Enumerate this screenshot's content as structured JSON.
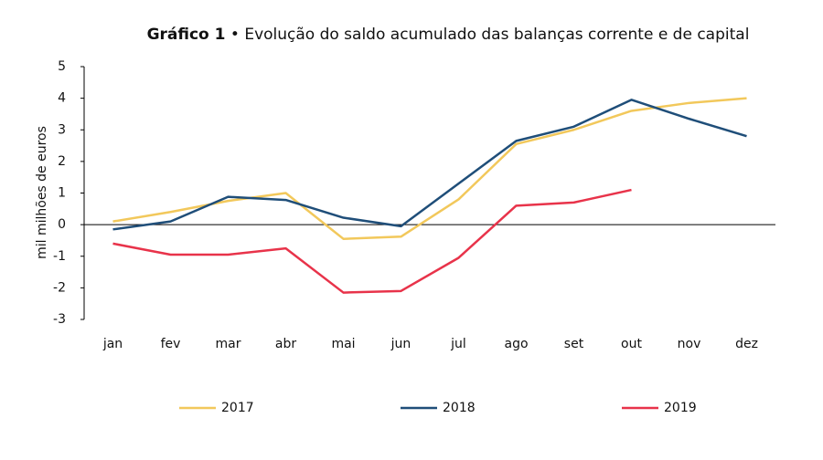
{
  "chart_data": {
    "type": "line",
    "title_number": "Gráfico 1",
    "title": "• Evolução do saldo acumulado das balanças corrente e de capital",
    "ylabel": "mil milhões de euros",
    "categories": [
      "jan",
      "fev",
      "mar",
      "abr",
      "mai",
      "jun",
      "jul",
      "ago",
      "set",
      "out",
      "nov",
      "dez"
    ],
    "series": [
      {
        "name": "2017",
        "color": "#f2c85b",
        "values": [
          0.1,
          0.4,
          0.75,
          1.0,
          -0.45,
          -0.38,
          0.8,
          2.55,
          3.0,
          3.6,
          3.85,
          4.0
        ]
      },
      {
        "name": "2018",
        "color": "#1f4e79",
        "values": [
          -0.15,
          0.1,
          0.88,
          0.78,
          0.22,
          -0.05,
          1.3,
          2.65,
          3.1,
          3.95,
          3.35,
          2.8
        ]
      },
      {
        "name": "2019",
        "color": "#e8334a",
        "values": [
          -0.6,
          -0.95,
          -0.95,
          -0.75,
          -2.15,
          -2.1,
          -1.05,
          0.6,
          0.7,
          1.1,
          null,
          null
        ]
      }
    ],
    "ylim": [
      -3,
      5
    ],
    "yticks": [
      -3,
      -2,
      -1,
      0,
      1,
      2,
      3,
      4,
      5
    ],
    "grid": false
  }
}
